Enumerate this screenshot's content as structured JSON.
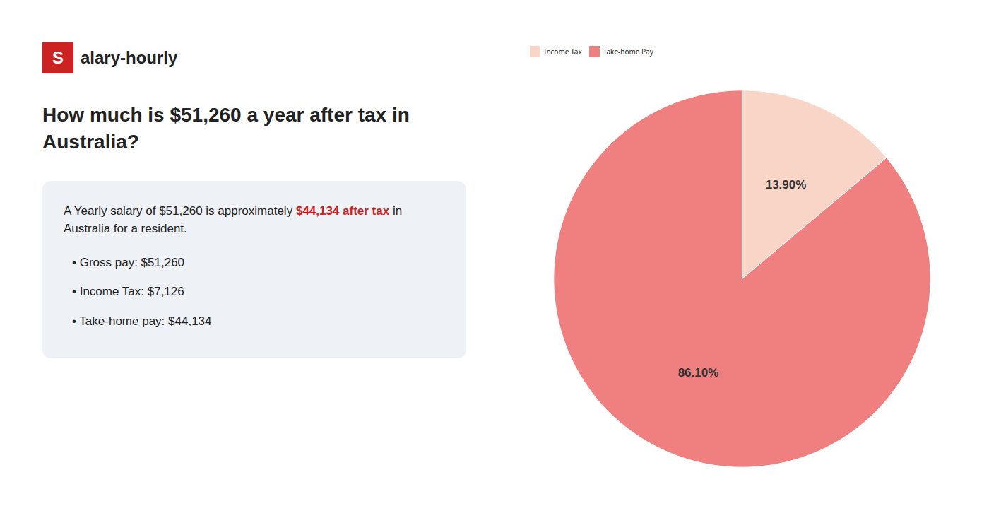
{
  "chart_data": {
    "type": "pie",
    "title": "How much is $51,260 a year after tax in\nAustralia?",
    "categories": [
      "Income Tax",
      "Take-home Pay"
    ],
    "values": [
      13.9,
      86.1
    ],
    "value_labels": [
      "13.90%",
      "86.10%"
    ],
    "colors": [
      "#f9d5c8",
      "#f08080"
    ],
    "data_labels": true,
    "legend": "top",
    "annotations": [
      {
        "text": "S",
        "color": "#cc2222"
      },
      {
        "text": "alary-hourly"
      },
      {
        "text": "A Yearly salary of $51,260 is approximately "
      },
      {
        "text": "$44,134 after tax",
        "color": "#cc2222"
      },
      {
        "text": " in"
      },
      {
        "text": "Australia for a resident."
      },
      {
        "text": "• Gross pay: $51,260"
      },
      {
        "text": "• Income Tax: $7,126"
      },
      {
        "text": "• Take-home pay: $44,134"
      }
    ]
  }
}
